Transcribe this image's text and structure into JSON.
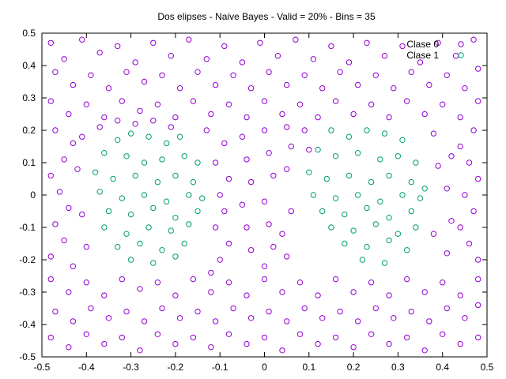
{
  "chart_data": {
    "type": "scatter",
    "title": "Dos elipses - Naive Bayes - Valid = 20% - Bins = 35",
    "xlabel": "",
    "ylabel": "",
    "xlim": [
      -0.5,
      0.5
    ],
    "ylim": [
      -0.5,
      0.5
    ],
    "xticks": [
      -0.5,
      -0.4,
      -0.3,
      -0.2,
      -0.1,
      0,
      0.1,
      0.2,
      0.3,
      0.4,
      0.5
    ],
    "yticks": [
      -0.5,
      -0.4,
      -0.3,
      -0.2,
      -0.1,
      0,
      0.1,
      0.2,
      0.3,
      0.4,
      0.5
    ],
    "xtick_labels": [
      "-0.5",
      "-0.4",
      "-0.3",
      "-0.2",
      "-0.1",
      "0",
      "0.1",
      "0.2",
      "0.3",
      "0.4",
      "0.5"
    ],
    "ytick_labels": [
      "-0.5",
      "-0.4",
      "-0.3",
      "-0.2",
      "-0.1",
      "0",
      "0.1",
      "0.2",
      "0.3",
      "0.4",
      "0.5"
    ],
    "grid": false,
    "legend_position": "top-right",
    "series": [
      {
        "name": "Clase 0",
        "color": "#9400d3",
        "marker": "open-circle",
        "points": [
          [
            -0.48,
            0.47
          ],
          [
            -0.45,
            0.42
          ],
          [
            -0.41,
            0.48
          ],
          [
            -0.37,
            0.44
          ],
          [
            -0.33,
            0.46
          ],
          [
            -0.29,
            0.41
          ],
          [
            -0.25,
            0.47
          ],
          [
            -0.21,
            0.43
          ],
          [
            -0.17,
            0.48
          ],
          [
            -0.13,
            0.42
          ],
          [
            -0.09,
            0.46
          ],
          [
            -0.05,
            0.41
          ],
          [
            -0.01,
            0.47
          ],
          [
            0.03,
            0.43
          ],
          [
            0.07,
            0.48
          ],
          [
            0.11,
            0.42
          ],
          [
            0.15,
            0.46
          ],
          [
            0.19,
            0.41
          ],
          [
            0.23,
            0.47
          ],
          [
            0.27,
            0.43
          ],
          [
            0.31,
            0.46
          ],
          [
            0.35,
            0.41
          ],
          [
            0.39,
            0.47
          ],
          [
            0.43,
            0.43
          ],
          [
            0.47,
            0.48
          ],
          [
            -0.47,
            0.38
          ],
          [
            -0.43,
            0.34
          ],
          [
            -0.39,
            0.37
          ],
          [
            -0.35,
            0.33
          ],
          [
            -0.31,
            0.38
          ],
          [
            -0.27,
            0.35
          ],
          [
            -0.23,
            0.37
          ],
          [
            -0.19,
            0.33
          ],
          [
            -0.15,
            0.38
          ],
          [
            -0.11,
            0.34
          ],
          [
            -0.07,
            0.37
          ],
          [
            -0.03,
            0.33
          ],
          [
            0.01,
            0.38
          ],
          [
            0.05,
            0.34
          ],
          [
            0.09,
            0.37
          ],
          [
            0.13,
            0.33
          ],
          [
            0.17,
            0.38
          ],
          [
            0.21,
            0.34
          ],
          [
            0.25,
            0.37
          ],
          [
            0.29,
            0.33
          ],
          [
            0.33,
            0.38
          ],
          [
            0.37,
            0.34
          ],
          [
            0.41,
            0.37
          ],
          [
            0.45,
            0.33
          ],
          [
            0.48,
            0.39
          ],
          [
            -0.48,
            0.29
          ],
          [
            -0.44,
            0.25
          ],
          [
            -0.4,
            0.28
          ],
          [
            -0.36,
            0.24
          ],
          [
            -0.32,
            0.29
          ],
          [
            -0.28,
            0.26
          ],
          [
            -0.24,
            0.28
          ],
          [
            -0.2,
            0.24
          ],
          [
            -0.16,
            0.29
          ],
          [
            -0.12,
            0.25
          ],
          [
            -0.08,
            0.28
          ],
          [
            -0.04,
            0.24
          ],
          [
            0,
            0.29
          ],
          [
            0.04,
            0.25
          ],
          [
            0.08,
            0.28
          ],
          [
            0.12,
            0.24
          ],
          [
            0.16,
            0.29
          ],
          [
            0.2,
            0.25
          ],
          [
            0.24,
            0.28
          ],
          [
            0.28,
            0.24
          ],
          [
            0.32,
            0.29
          ],
          [
            0.36,
            0.25
          ],
          [
            0.4,
            0.28
          ],
          [
            0.44,
            0.24
          ],
          [
            0.48,
            0.29
          ],
          [
            -0.47,
            0.2
          ],
          [
            -0.43,
            0.16
          ],
          [
            -0.45,
            0.11
          ],
          [
            -0.48,
            0.06
          ],
          [
            -0.46,
            0.01
          ],
          [
            -0.44,
            -0.04
          ],
          [
            -0.47,
            -0.09
          ],
          [
            -0.45,
            -0.14
          ],
          [
            -0.48,
            -0.19
          ],
          [
            -0.43,
            -0.22
          ],
          [
            -0.41,
            0.18
          ],
          [
            -0.42,
            0.08
          ],
          [
            -0.41,
            -0.06
          ],
          [
            -0.4,
            -0.16
          ],
          [
            -0.37,
            0.21
          ],
          [
            -0.33,
            0.23
          ],
          [
            -0.29,
            0.22
          ],
          [
            -0.25,
            0.23
          ],
          [
            -0.21,
            0.21
          ],
          [
            -0.13,
            0.2
          ],
          [
            -0.09,
            0.16
          ],
          [
            -0.11,
            0.1
          ],
          [
            -0.08,
            0.05
          ],
          [
            -0.1,
            0
          ],
          [
            -0.09,
            -0.05
          ],
          [
            -0.11,
            -0.1
          ],
          [
            -0.08,
            -0.15
          ],
          [
            -0.1,
            -0.2
          ],
          [
            -0.12,
            -0.24
          ],
          [
            -0.05,
            0.18
          ],
          [
            -0.04,
            0.11
          ],
          [
            -0.03,
            0.04
          ],
          [
            -0.05,
            -0.03
          ],
          [
            -0.04,
            -0.1
          ],
          [
            -0.03,
            -0.17
          ],
          [
            0,
            0.2
          ],
          [
            0.01,
            0.13
          ],
          [
            0.02,
            0.06
          ],
          [
            0,
            -0.02
          ],
          [
            0.01,
            -0.09
          ],
          [
            0.02,
            -0.16
          ],
          [
            0,
            -0.22
          ],
          [
            0.05,
            0.21
          ],
          [
            0.06,
            0.15
          ],
          [
            0.05,
            0.08
          ],
          [
            0.06,
            -0.05
          ],
          [
            0.04,
            -0.12
          ],
          [
            0.05,
            -0.19
          ],
          [
            0.09,
            0.2
          ],
          [
            0.1,
            0.14
          ],
          [
            0.47,
            0.2
          ],
          [
            0.44,
            0.15
          ],
          [
            0.46,
            0.1
          ],
          [
            0.48,
            0.05
          ],
          [
            0.45,
            0
          ],
          [
            0.47,
            -0.05
          ],
          [
            0.44,
            -0.1
          ],
          [
            0.46,
            -0.15
          ],
          [
            0.48,
            -0.2
          ],
          [
            0.42,
            0.12
          ],
          [
            0.41,
            0.02
          ],
          [
            0.42,
            -0.08
          ],
          [
            0.41,
            -0.18
          ],
          [
            0.38,
            0.19
          ],
          [
            0.39,
            0.09
          ],
          [
            0.38,
            -0.12
          ],
          [
            -0.48,
            -0.26
          ],
          [
            -0.44,
            -0.3
          ],
          [
            -0.4,
            -0.27
          ],
          [
            -0.36,
            -0.31
          ],
          [
            -0.32,
            -0.26
          ],
          [
            -0.28,
            -0.29
          ],
          [
            -0.24,
            -0.27
          ],
          [
            -0.2,
            -0.31
          ],
          [
            -0.16,
            -0.26
          ],
          [
            -0.12,
            -0.3
          ],
          [
            -0.08,
            -0.27
          ],
          [
            -0.04,
            -0.31
          ],
          [
            0,
            -0.26
          ],
          [
            0.04,
            -0.3
          ],
          [
            0.08,
            -0.27
          ],
          [
            0.12,
            -0.31
          ],
          [
            0.16,
            -0.26
          ],
          [
            0.2,
            -0.3
          ],
          [
            0.24,
            -0.27
          ],
          [
            0.28,
            -0.31
          ],
          [
            0.32,
            -0.26
          ],
          [
            0.36,
            -0.3
          ],
          [
            0.4,
            -0.27
          ],
          [
            0.44,
            -0.31
          ],
          [
            0.48,
            -0.26
          ],
          [
            -0.47,
            -0.36
          ],
          [
            -0.43,
            -0.39
          ],
          [
            -0.39,
            -0.35
          ],
          [
            -0.35,
            -0.38
          ],
          [
            -0.31,
            -0.36
          ],
          [
            -0.27,
            -0.39
          ],
          [
            -0.23,
            -0.35
          ],
          [
            -0.19,
            -0.38
          ],
          [
            -0.15,
            -0.36
          ],
          [
            -0.11,
            -0.39
          ],
          [
            -0.07,
            -0.35
          ],
          [
            -0.03,
            -0.38
          ],
          [
            0.01,
            -0.36
          ],
          [
            0.05,
            -0.39
          ],
          [
            0.09,
            -0.35
          ],
          [
            0.13,
            -0.38
          ],
          [
            0.17,
            -0.36
          ],
          [
            0.21,
            -0.39
          ],
          [
            0.25,
            -0.35
          ],
          [
            0.29,
            -0.38
          ],
          [
            0.33,
            -0.36
          ],
          [
            0.37,
            -0.39
          ],
          [
            0.41,
            -0.35
          ],
          [
            0.45,
            -0.38
          ],
          [
            0.48,
            -0.34
          ],
          [
            -0.48,
            -0.44
          ],
          [
            -0.44,
            -0.47
          ],
          [
            -0.4,
            -0.43
          ],
          [
            -0.36,
            -0.46
          ],
          [
            -0.32,
            -0.44
          ],
          [
            -0.28,
            -0.48
          ],
          [
            -0.24,
            -0.43
          ],
          [
            -0.2,
            -0.46
          ],
          [
            -0.16,
            -0.44
          ],
          [
            -0.12,
            -0.47
          ],
          [
            -0.08,
            -0.43
          ],
          [
            -0.04,
            -0.46
          ],
          [
            0,
            -0.44
          ],
          [
            0.04,
            -0.48
          ],
          [
            0.08,
            -0.43
          ],
          [
            0.12,
            -0.46
          ],
          [
            0.16,
            -0.44
          ],
          [
            0.2,
            -0.47
          ],
          [
            0.24,
            -0.43
          ],
          [
            0.28,
            -0.46
          ],
          [
            0.32,
            -0.44
          ],
          [
            0.36,
            -0.48
          ],
          [
            0.4,
            -0.43
          ],
          [
            0.44,
            -0.46
          ],
          [
            0.48,
            -0.44
          ]
        ]
      },
      {
        "name": "Clase 1",
        "color": "#009e73",
        "marker": "open-circle",
        "points": [
          [
            -0.33,
            0.17
          ],
          [
            -0.3,
            0.19
          ],
          [
            -0.26,
            0.18
          ],
          [
            -0.22,
            0.16
          ],
          [
            -0.19,
            0.18
          ],
          [
            -0.36,
            0.13
          ],
          [
            -0.31,
            0.12
          ],
          [
            -0.27,
            0.1
          ],
          [
            -0.23,
            0.11
          ],
          [
            -0.18,
            0.12
          ],
          [
            -0.15,
            0.1
          ],
          [
            -0.38,
            0.07
          ],
          [
            -0.34,
            0.05
          ],
          [
            -0.29,
            0.06
          ],
          [
            -0.24,
            0.04
          ],
          [
            -0.2,
            0.06
          ],
          [
            -0.16,
            0.04
          ],
          [
            -0.37,
            0.01
          ],
          [
            -0.32,
            -0.01
          ],
          [
            -0.27,
            0
          ],
          [
            -0.22,
            -0.02
          ],
          [
            -0.17,
            0
          ],
          [
            -0.14,
            -0.01
          ],
          [
            -0.35,
            -0.05
          ],
          [
            -0.3,
            -0.06
          ],
          [
            -0.25,
            -0.04
          ],
          [
            -0.2,
            -0.07
          ],
          [
            -0.15,
            -0.05
          ],
          [
            -0.36,
            -0.1
          ],
          [
            -0.31,
            -0.12
          ],
          [
            -0.26,
            -0.1
          ],
          [
            -0.21,
            -0.11
          ],
          [
            -0.17,
            -0.09
          ],
          [
            -0.33,
            -0.16
          ],
          [
            -0.28,
            -0.15
          ],
          [
            -0.23,
            -0.17
          ],
          [
            -0.18,
            -0.15
          ],
          [
            -0.3,
            -0.2
          ],
          [
            -0.25,
            -0.21
          ],
          [
            -0.2,
            -0.19
          ],
          [
            0.15,
            0.2
          ],
          [
            0.19,
            0.18
          ],
          [
            0.23,
            0.2
          ],
          [
            0.27,
            0.19
          ],
          [
            0.31,
            0.17
          ],
          [
            0.12,
            0.14
          ],
          [
            0.16,
            0.12
          ],
          [
            0.21,
            0.13
          ],
          [
            0.26,
            0.11
          ],
          [
            0.3,
            0.12
          ],
          [
            0.34,
            0.1
          ],
          [
            0.1,
            0.07
          ],
          [
            0.14,
            0.05
          ],
          [
            0.19,
            0.06
          ],
          [
            0.24,
            0.04
          ],
          [
            0.28,
            0.06
          ],
          [
            0.33,
            0.04
          ],
          [
            0.36,
            0.02
          ],
          [
            0.11,
            0
          ],
          [
            0.16,
            -0.01
          ],
          [
            0.21,
            0
          ],
          [
            0.26,
            -0.02
          ],
          [
            0.31,
            0
          ],
          [
            0.35,
            -0.01
          ],
          [
            0.13,
            -0.05
          ],
          [
            0.18,
            -0.06
          ],
          [
            0.23,
            -0.04
          ],
          [
            0.28,
            -0.07
          ],
          [
            0.33,
            -0.05
          ],
          [
            0.15,
            -0.1
          ],
          [
            0.2,
            -0.11
          ],
          [
            0.25,
            -0.09
          ],
          [
            0.3,
            -0.12
          ],
          [
            0.34,
            -0.1
          ],
          [
            0.18,
            -0.15
          ],
          [
            0.23,
            -0.16
          ],
          [
            0.28,
            -0.14
          ],
          [
            0.32,
            -0.17
          ],
          [
            0.22,
            -0.2
          ],
          [
            0.27,
            -0.21
          ]
        ]
      }
    ]
  }
}
